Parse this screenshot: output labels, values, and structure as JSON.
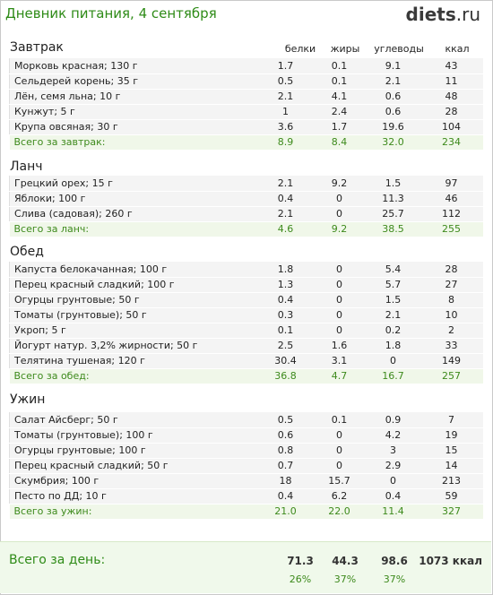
{
  "header": {
    "title": "Дневник питания, 4 сентября",
    "logo_main": "diets",
    "logo_dot": ".",
    "logo_tld": "ru"
  },
  "columns": {
    "protein": "белки",
    "fat": "жиры",
    "carbs": "углеводы",
    "kcal": "ккал"
  },
  "meals": [
    {
      "title": "Завтрак",
      "items": [
        {
          "name": "Морковь красная; 130 г",
          "p": "1.7",
          "f": "0.1",
          "c": "9.1",
          "k": "43"
        },
        {
          "name": "Сельдерей корень; 35 г",
          "p": "0.5",
          "f": "0.1",
          "c": "2.1",
          "k": "11"
        },
        {
          "name": "Лён, семя льна; 10 г",
          "p": "2.1",
          "f": "4.1",
          "c": "0.6",
          "k": "48"
        },
        {
          "name": "Кунжут; 5 г",
          "p": "1",
          "f": "2.4",
          "c": "0.6",
          "k": "28"
        },
        {
          "name": "Крупа овсяная; 30 г",
          "p": "3.6",
          "f": "1.7",
          "c": "19.6",
          "k": "104"
        }
      ],
      "total": {
        "name": "Всего за завтрак:",
        "p": "8.9",
        "f": "8.4",
        "c": "32.0",
        "k": "234"
      }
    },
    {
      "title": "Ланч",
      "items": [
        {
          "name": "Грецкий орех; 15 г",
          "p": "2.1",
          "f": "9.2",
          "c": "1.5",
          "k": "97"
        },
        {
          "name": "Яблоки; 100 г",
          "p": "0.4",
          "f": "0",
          "c": "11.3",
          "k": "46"
        },
        {
          "name": "Слива (садовая); 260 г",
          "p": "2.1",
          "f": "0",
          "c": "25.7",
          "k": "112"
        }
      ],
      "total": {
        "name": "Всего за ланч:",
        "p": "4.6",
        "f": "9.2",
        "c": "38.5",
        "k": "255"
      }
    },
    {
      "title": "Обед",
      "items": [
        {
          "name": "Капуста белокачанная; 100 г",
          "p": "1.8",
          "f": "0",
          "c": "5.4",
          "k": "28"
        },
        {
          "name": "Перец красный сладкий; 100 г",
          "p": "1.3",
          "f": "0",
          "c": "5.7",
          "k": "27"
        },
        {
          "name": "Огурцы грунтовые; 50 г",
          "p": "0.4",
          "f": "0",
          "c": "1.5",
          "k": "8"
        },
        {
          "name": "Томаты (грунтовые); 50 г",
          "p": "0.3",
          "f": "0",
          "c": "2.1",
          "k": "10"
        },
        {
          "name": "Укроп; 5 г",
          "p": "0.1",
          "f": "0",
          "c": "0.2",
          "k": "2"
        },
        {
          "name": "Йогурт натур. 3,2% жирности; 50 г",
          "p": "2.5",
          "f": "1.6",
          "c": "1.8",
          "k": "33"
        },
        {
          "name": "Телятина тушеная; 120 г",
          "p": "30.4",
          "f": "3.1",
          "c": "0",
          "k": "149"
        }
      ],
      "total": {
        "name": "Всего за обед:",
        "p": "36.8",
        "f": "4.7",
        "c": "16.7",
        "k": "257"
      }
    },
    {
      "title": "Ужин",
      "items": [
        {
          "name": "Салат Айсберг; 50 г",
          "p": "0.5",
          "f": "0.1",
          "c": "0.9",
          "k": "7"
        },
        {
          "name": "Томаты (грунтовые); 100 г",
          "p": "0.6",
          "f": "0",
          "c": "4.2",
          "k": "19"
        },
        {
          "name": "Огурцы грунтовые; 100 г",
          "p": "0.8",
          "f": "0",
          "c": "3",
          "k": "15"
        },
        {
          "name": "Перец красный сладкий; 50 г",
          "p": "0.7",
          "f": "0",
          "c": "2.9",
          "k": "14"
        },
        {
          "name": "Скумбрия; 100 г",
          "p": "18",
          "f": "15.7",
          "c": "0",
          "k": "213"
        },
        {
          "name": "Песто по ДД; 10 г",
          "p": "0.4",
          "f": "6.2",
          "c": "0.4",
          "k": "59"
        }
      ],
      "total": {
        "name": "Всего за ужин:",
        "p": "21.0",
        "f": "22.0",
        "c": "11.4",
        "k": "327"
      }
    }
  ],
  "day": {
    "label": "Всего за день:",
    "protein": "71.3",
    "fat": "44.3",
    "carbs": "98.6",
    "kcal": "1073 ккал",
    "protein_pct": "26%",
    "fat_pct": "37%",
    "carbs_pct": "37%"
  }
}
